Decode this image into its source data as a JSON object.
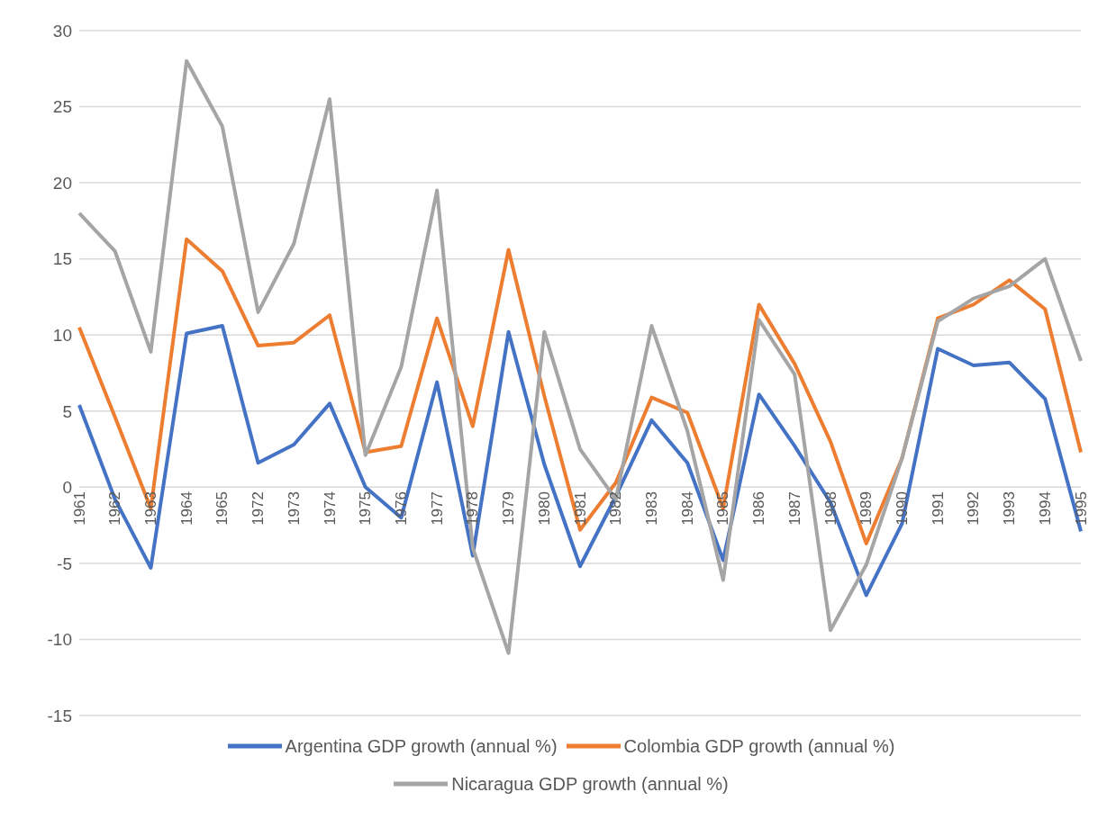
{
  "chart_data": {
    "type": "line",
    "categories": [
      "1961",
      "1962",
      "1963",
      "1964",
      "1965",
      "1972",
      "1973",
      "1974",
      "1975",
      "1976",
      "1977",
      "1978",
      "1979",
      "1980",
      "1981",
      "1982",
      "1983",
      "1984",
      "1985",
      "1986",
      "1987",
      "1988",
      "1989",
      "1990",
      "1991",
      "1992",
      "1993",
      "1994",
      "1995"
    ],
    "series": [
      {
        "name": "Argentina GDP growth (annual %)",
        "color": "#4472c4",
        "values": [
          5.4,
          -0.8,
          -5.3,
          10.1,
          10.6,
          1.6,
          2.8,
          5.5,
          0.0,
          -2.0,
          6.9,
          -4.5,
          10.2,
          1.5,
          -5.2,
          -0.6,
          4.4,
          1.6,
          -4.8,
          6.1,
          2.7,
          -1.0,
          -7.1,
          -2.4,
          9.1,
          8.0,
          8.2,
          5.8,
          -2.9
        ]
      },
      {
        "name": "Colombia GDP growth (annual %)",
        "color": "#ed7d31",
        "values": [
          10.5,
          4.6,
          -1.4,
          16.3,
          14.2,
          9.3,
          9.5,
          11.3,
          2.3,
          2.7,
          11.1,
          4.0,
          15.6,
          6.0,
          -2.8,
          0.3,
          5.9,
          4.9,
          -1.4,
          12.0,
          8.1,
          3.0,
          -3.7,
          1.9,
          11.1,
          12.0,
          13.6,
          11.7,
          2.3
        ]
      },
      {
        "name": "Nicaragua GDP growth (annual %)",
        "color": "#a5a5a5",
        "values": [
          18.0,
          15.5,
          8.9,
          28.0,
          23.7,
          11.5,
          16.0,
          25.5,
          2.1,
          7.9,
          19.5,
          -4.0,
          -10.9,
          10.2,
          2.5,
          -0.8,
          10.6,
          3.7,
          -6.1,
          11.0,
          7.4,
          -9.4,
          -5.1,
          1.9,
          10.9,
          12.4,
          13.2,
          15.0,
          8.3
        ]
      }
    ],
    "ylim": [
      -15,
      30
    ],
    "yticks": [
      -15,
      -10,
      -5,
      0,
      5,
      10,
      15,
      20,
      25,
      30
    ],
    "grid": "y",
    "legend": "bottom",
    "marker": "none",
    "line_style": "solid"
  }
}
